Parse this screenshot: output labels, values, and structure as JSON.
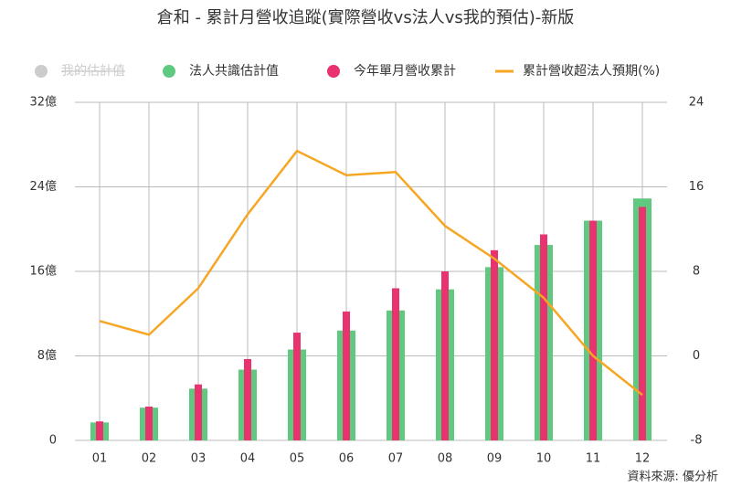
{
  "chart_data": {
    "type": "bar-line",
    "title": "倉和 - 累計月營收追蹤(實際營收vs法人vs我的預估)-新版",
    "source": "資料來源: 優分析",
    "categories": [
      "01",
      "02",
      "03",
      "04",
      "05",
      "06",
      "07",
      "08",
      "09",
      "10",
      "11",
      "12"
    ],
    "series": [
      {
        "name": "我的估計值",
        "color": "#cccccc",
        "hidden": true,
        "values": [
          null,
          null,
          null,
          null,
          null,
          null,
          null,
          null,
          null,
          null,
          null,
          null
        ]
      },
      {
        "name": "法人共識估計值",
        "color": "#5ec97f",
        "type": "bar",
        "values": [
          1.7,
          3.1,
          4.9,
          6.7,
          8.6,
          10.4,
          12.3,
          14.3,
          16.4,
          18.5,
          20.8,
          22.9
        ]
      },
      {
        "name": "今年單月營收累計",
        "color": "#e8336f",
        "type": "bar",
        "values": [
          1.8,
          3.2,
          5.3,
          7.7,
          10.2,
          12.2,
          14.4,
          16.0,
          18.0,
          19.5,
          20.8,
          22.1
        ]
      },
      {
        "name": "累計營收超法人預期(%)",
        "color": "#f5a623",
        "type": "line",
        "axis": "y2",
        "values": [
          3.3,
          2.0,
          6.4,
          13.4,
          19.4,
          17.1,
          17.4,
          12.3,
          9.2,
          5.5,
          0.0,
          -3.7
        ]
      }
    ],
    "ylim": [
      0,
      32
    ],
    "yticks": [
      0,
      {
        "value": 8,
        "label": "8億"
      },
      {
        "value": 16,
        "label": "16億"
      },
      {
        "value": 24,
        "label": "24億"
      },
      {
        "value": 32,
        "label": "32億"
      }
    ],
    "y2lim": [
      -8,
      24
    ],
    "y2ticks": [
      -8,
      0,
      8,
      16,
      24
    ],
    "grid": true
  }
}
